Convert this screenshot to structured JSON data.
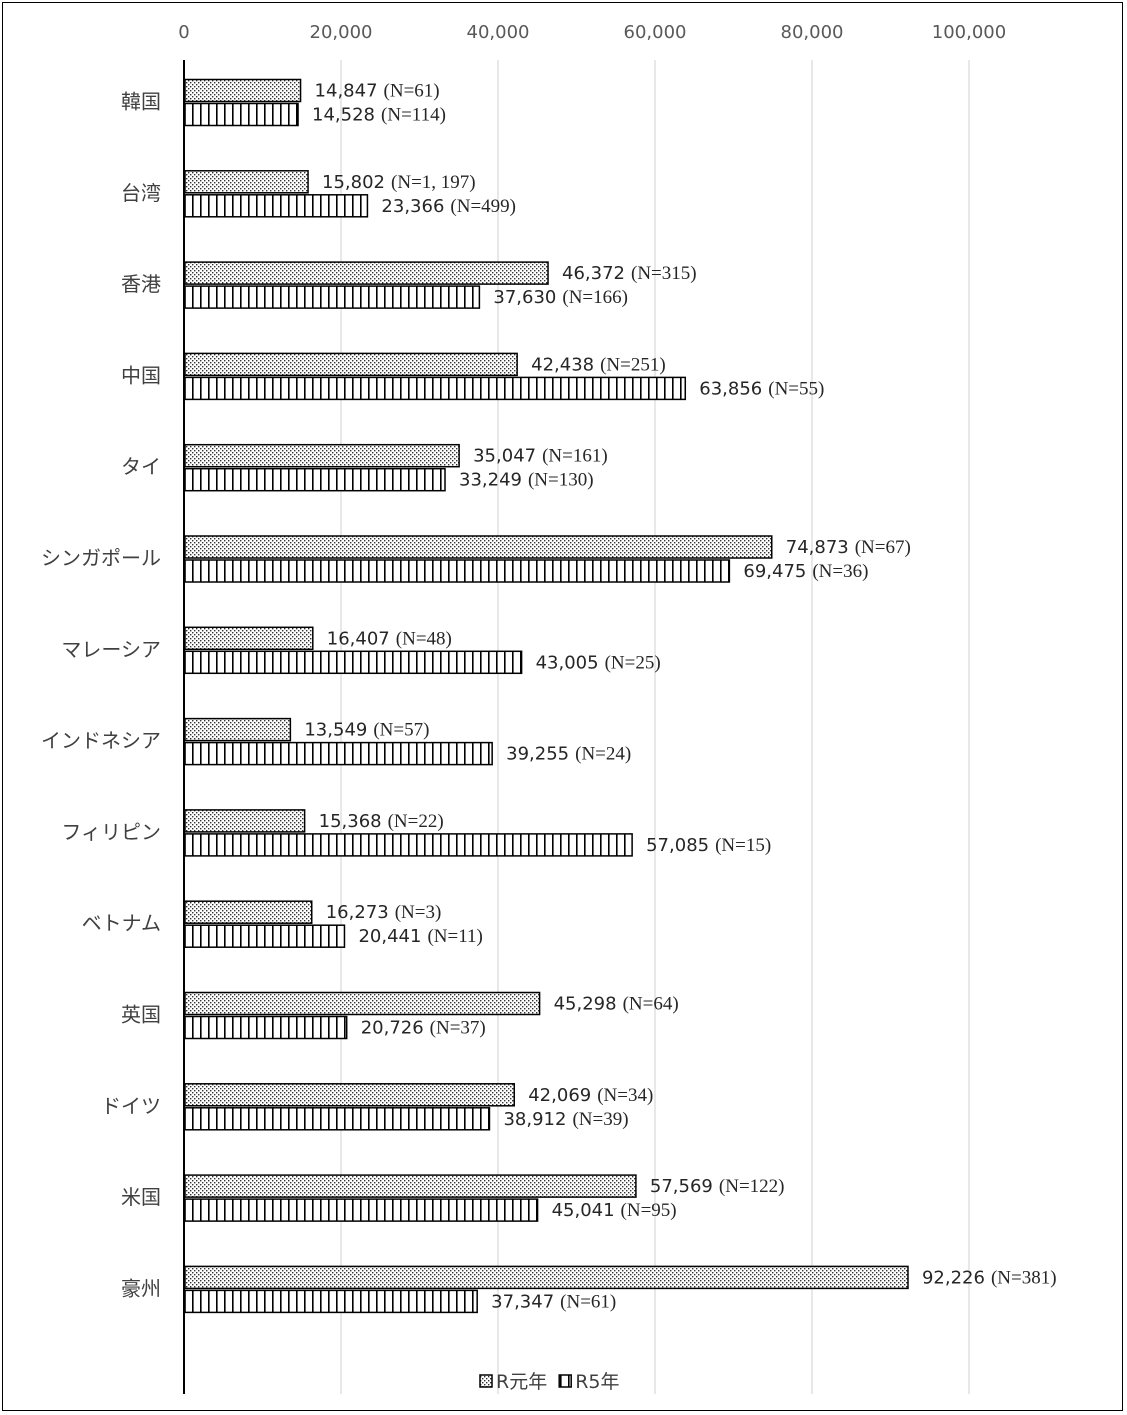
{
  "chart_data": {
    "type": "bar",
    "orientation": "horizontal",
    "categories": [
      "韓国",
      "台湾",
      "香港",
      "中国",
      "タイ",
      "シンガポール",
      "マレーシア",
      "インドネシア",
      "フィリピン",
      "ベトナム",
      "英国",
      "ドイツ",
      "米国",
      "豪州"
    ],
    "series": [
      {
        "name": "R元年",
        "values": [
          14847,
          15802,
          46372,
          42438,
          35047,
          74873,
          16407,
          13549,
          15368,
          16273,
          45298,
          42069,
          57569,
          92226
        ],
        "value_labels": [
          "14,847",
          "15,802",
          "46,372",
          "42,438",
          "35,047",
          "74,873",
          "16,407",
          "13,549",
          "15,368",
          "16,273",
          "45,298",
          "42,069",
          "57,569",
          "92,226"
        ],
        "n_labels": [
          "(N=61)",
          "(N=1, 197)",
          "(N=315)",
          "(N=251)",
          "(N=161)",
          "(N=67)",
          "(N=48)",
          "(N=57)",
          "(N=22)",
          "(N=3)",
          "(N=64)",
          "(N=34)",
          "(N=122)",
          "(N=381)"
        ],
        "pattern": "dotted"
      },
      {
        "name": "R5年",
        "values": [
          14528,
          23366,
          37630,
          63856,
          33249,
          69475,
          43005,
          39255,
          57085,
          20441,
          20726,
          38912,
          45041,
          37347
        ],
        "value_labels": [
          "14,528",
          "23,366",
          "37,630",
          "63,856",
          "33,249",
          "69,475",
          "43,005",
          "39,255",
          "57,085",
          "20,441",
          "20,726",
          "38,912",
          "45,041",
          "37,347"
        ],
        "n_labels": [
          "(N=114)",
          "(N=499)",
          "(N=166)",
          "(N=55)",
          "(N=130)",
          "(N=36)",
          "(N=25)",
          "(N=24)",
          "(N=15)",
          "(N=11)",
          "(N=37)",
          "(N=39)",
          "(N=95)",
          "(N=61)"
        ],
        "pattern": "vertical-stripes"
      }
    ],
    "x_ticks": [
      0,
      20000,
      40000,
      60000,
      80000,
      100000
    ],
    "x_tick_labels": [
      "0",
      "20,000",
      "40,000",
      "60,000",
      "80,000",
      "100,000"
    ],
    "xlim": [
      0,
      110000
    ],
    "x_axis_position": "top",
    "grid": "vertical",
    "legend_position": "bottom-center",
    "title": "",
    "xlabel": "",
    "ylabel": ""
  }
}
